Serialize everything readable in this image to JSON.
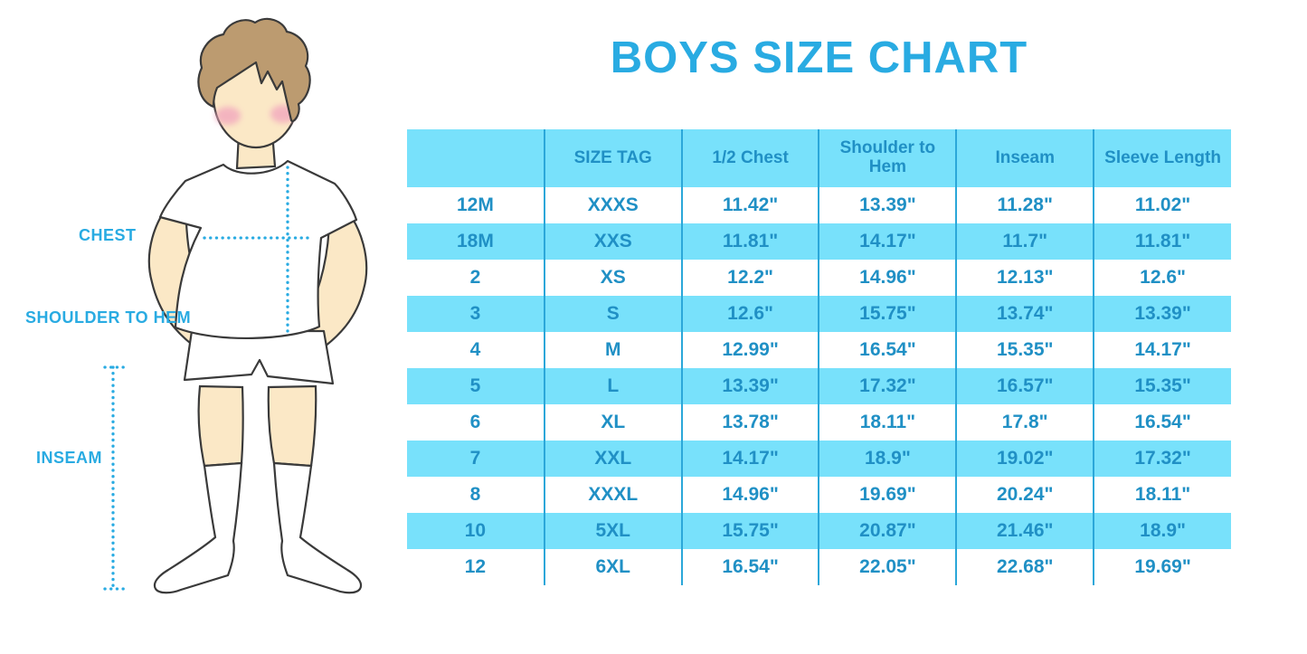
{
  "title_text": "BOYS SIZE CHART",
  "colors": {
    "accent_blue": "#29ABE2",
    "table_band_cyan": "#78E1FB",
    "table_text_blue": "#2090C5",
    "table_divider_blue": "#2BA7D9",
    "skin": "#FBE8C6",
    "hair_brown": "#BC9B70",
    "cheek_pink": "#F2A8BE"
  },
  "figure": {
    "labels": {
      "chest": "CHEST",
      "shoulder_to_hem": "SHOULDER TO HEM",
      "inseam": "INSEAM"
    },
    "measure_lines": [
      "chest-line",
      "shoulder-to-hem-line",
      "inseam-line"
    ]
  },
  "chart_data": {
    "type": "table",
    "title": "BOYS SIZE CHART",
    "columns": [
      "",
      "SIZE TAG",
      "1/2 Chest",
      "Shoulder to Hem",
      "Inseam",
      "Sleeve Length"
    ],
    "rows": [
      [
        "12M",
        "XXXS",
        "11.42\"",
        "13.39\"",
        "11.28\"",
        "11.02\""
      ],
      [
        "18M",
        "XXS",
        "11.81\"",
        "14.17\"",
        "11.7\"",
        "11.81\""
      ],
      [
        "2",
        "XS",
        "12.2\"",
        "14.96\"",
        "12.13\"",
        "12.6\""
      ],
      [
        "3",
        "S",
        "12.6\"",
        "15.75\"",
        "13.74\"",
        "13.39\""
      ],
      [
        "4",
        "M",
        "12.99\"",
        "16.54\"",
        "15.35\"",
        "14.17\""
      ],
      [
        "5",
        "L",
        "13.39\"",
        "17.32\"",
        "16.57\"",
        "15.35\""
      ],
      [
        "6",
        "XL",
        "13.78\"",
        "18.11\"",
        "17.8\"",
        "16.54\""
      ],
      [
        "7",
        "XXL",
        "14.17\"",
        "18.9\"",
        "19.02\"",
        "17.32\""
      ],
      [
        "8",
        "XXXL",
        "14.96\"",
        "19.69\"",
        "20.24\"",
        "18.11\""
      ],
      [
        "10",
        "5XL",
        "15.75\"",
        "20.87\"",
        "21.46\"",
        "18.9\""
      ],
      [
        "12",
        "6XL",
        "16.54\"",
        "22.05\"",
        "22.68\"",
        "19.69\""
      ]
    ],
    "row_striping": "white/cyan alternating starting white",
    "legend_position": "none",
    "grid": "vertical dividers only"
  }
}
